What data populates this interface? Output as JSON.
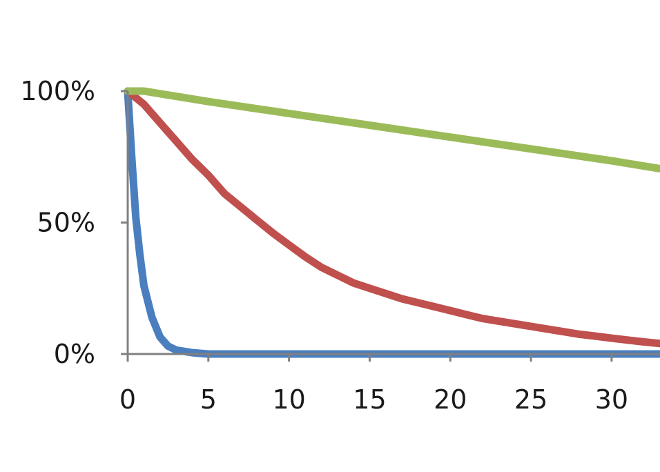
{
  "chart_data": {
    "type": "line",
    "title": "",
    "xlabel": "",
    "ylabel": "",
    "xlim": [
      0,
      33
    ],
    "ylim": [
      0,
      100
    ],
    "grid": false,
    "legend": "none",
    "x_ticks": [
      {
        "value": 0,
        "label": "0"
      },
      {
        "value": 5,
        "label": "5"
      },
      {
        "value": 10,
        "label": "10"
      },
      {
        "value": 15,
        "label": "15"
      },
      {
        "value": 20,
        "label": "20"
      },
      {
        "value": 25,
        "label": "25"
      },
      {
        "value": 30,
        "label": "30"
      }
    ],
    "y_ticks": [
      {
        "value": 0,
        "label": "0%"
      },
      {
        "value": 50,
        "label": "50%"
      },
      {
        "value": 100,
        "label": "100%"
      }
    ],
    "series": [
      {
        "color": "#4a7ebf",
        "points": [
          [
            0,
            100
          ],
          [
            0.25,
            75
          ],
          [
            0.5,
            52
          ],
          [
            0.75,
            38
          ],
          [
            1,
            26
          ],
          [
            1.5,
            14
          ],
          [
            2,
            6.5
          ],
          [
            2.5,
            3
          ],
          [
            3,
            1.5
          ],
          [
            4,
            0.5
          ],
          [
            5,
            0
          ],
          [
            10,
            0
          ],
          [
            15,
            0
          ],
          [
            20,
            0
          ],
          [
            25,
            0
          ],
          [
            30,
            0
          ],
          [
            33,
            0
          ]
        ]
      },
      {
        "color": "#c0504d",
        "points": [
          [
            0,
            100
          ],
          [
            1,
            95
          ],
          [
            2,
            88
          ],
          [
            3,
            81
          ],
          [
            4,
            74
          ],
          [
            5,
            68
          ],
          [
            6,
            61
          ],
          [
            7,
            56
          ],
          [
            8,
            51
          ],
          [
            9,
            46
          ],
          [
            10,
            41.5
          ],
          [
            11,
            37
          ],
          [
            12,
            33
          ],
          [
            13,
            30
          ],
          [
            14,
            27
          ],
          [
            15,
            25
          ],
          [
            16,
            23
          ],
          [
            17,
            21
          ],
          [
            18,
            19.5
          ],
          [
            19,
            18
          ],
          [
            20,
            16.5
          ],
          [
            21,
            15
          ],
          [
            22,
            13.5
          ],
          [
            23,
            12.5
          ],
          [
            24,
            11.5
          ],
          [
            25,
            10.5
          ],
          [
            26,
            9.5
          ],
          [
            27,
            8.5
          ],
          [
            28,
            7.5
          ],
          [
            29,
            6.8
          ],
          [
            30,
            6
          ],
          [
            31,
            5.3
          ],
          [
            32,
            4.6
          ],
          [
            33,
            4
          ]
        ]
      },
      {
        "color": "#9bbb59",
        "points": [
          [
            0,
            100
          ],
          [
            1,
            100
          ],
          [
            2,
            99
          ],
          [
            3,
            98
          ],
          [
            5,
            96
          ],
          [
            10,
            91.5
          ],
          [
            15,
            87
          ],
          [
            20,
            82.5
          ],
          [
            25,
            78
          ],
          [
            30,
            73.5
          ],
          [
            33,
            70.5
          ]
        ]
      }
    ]
  }
}
